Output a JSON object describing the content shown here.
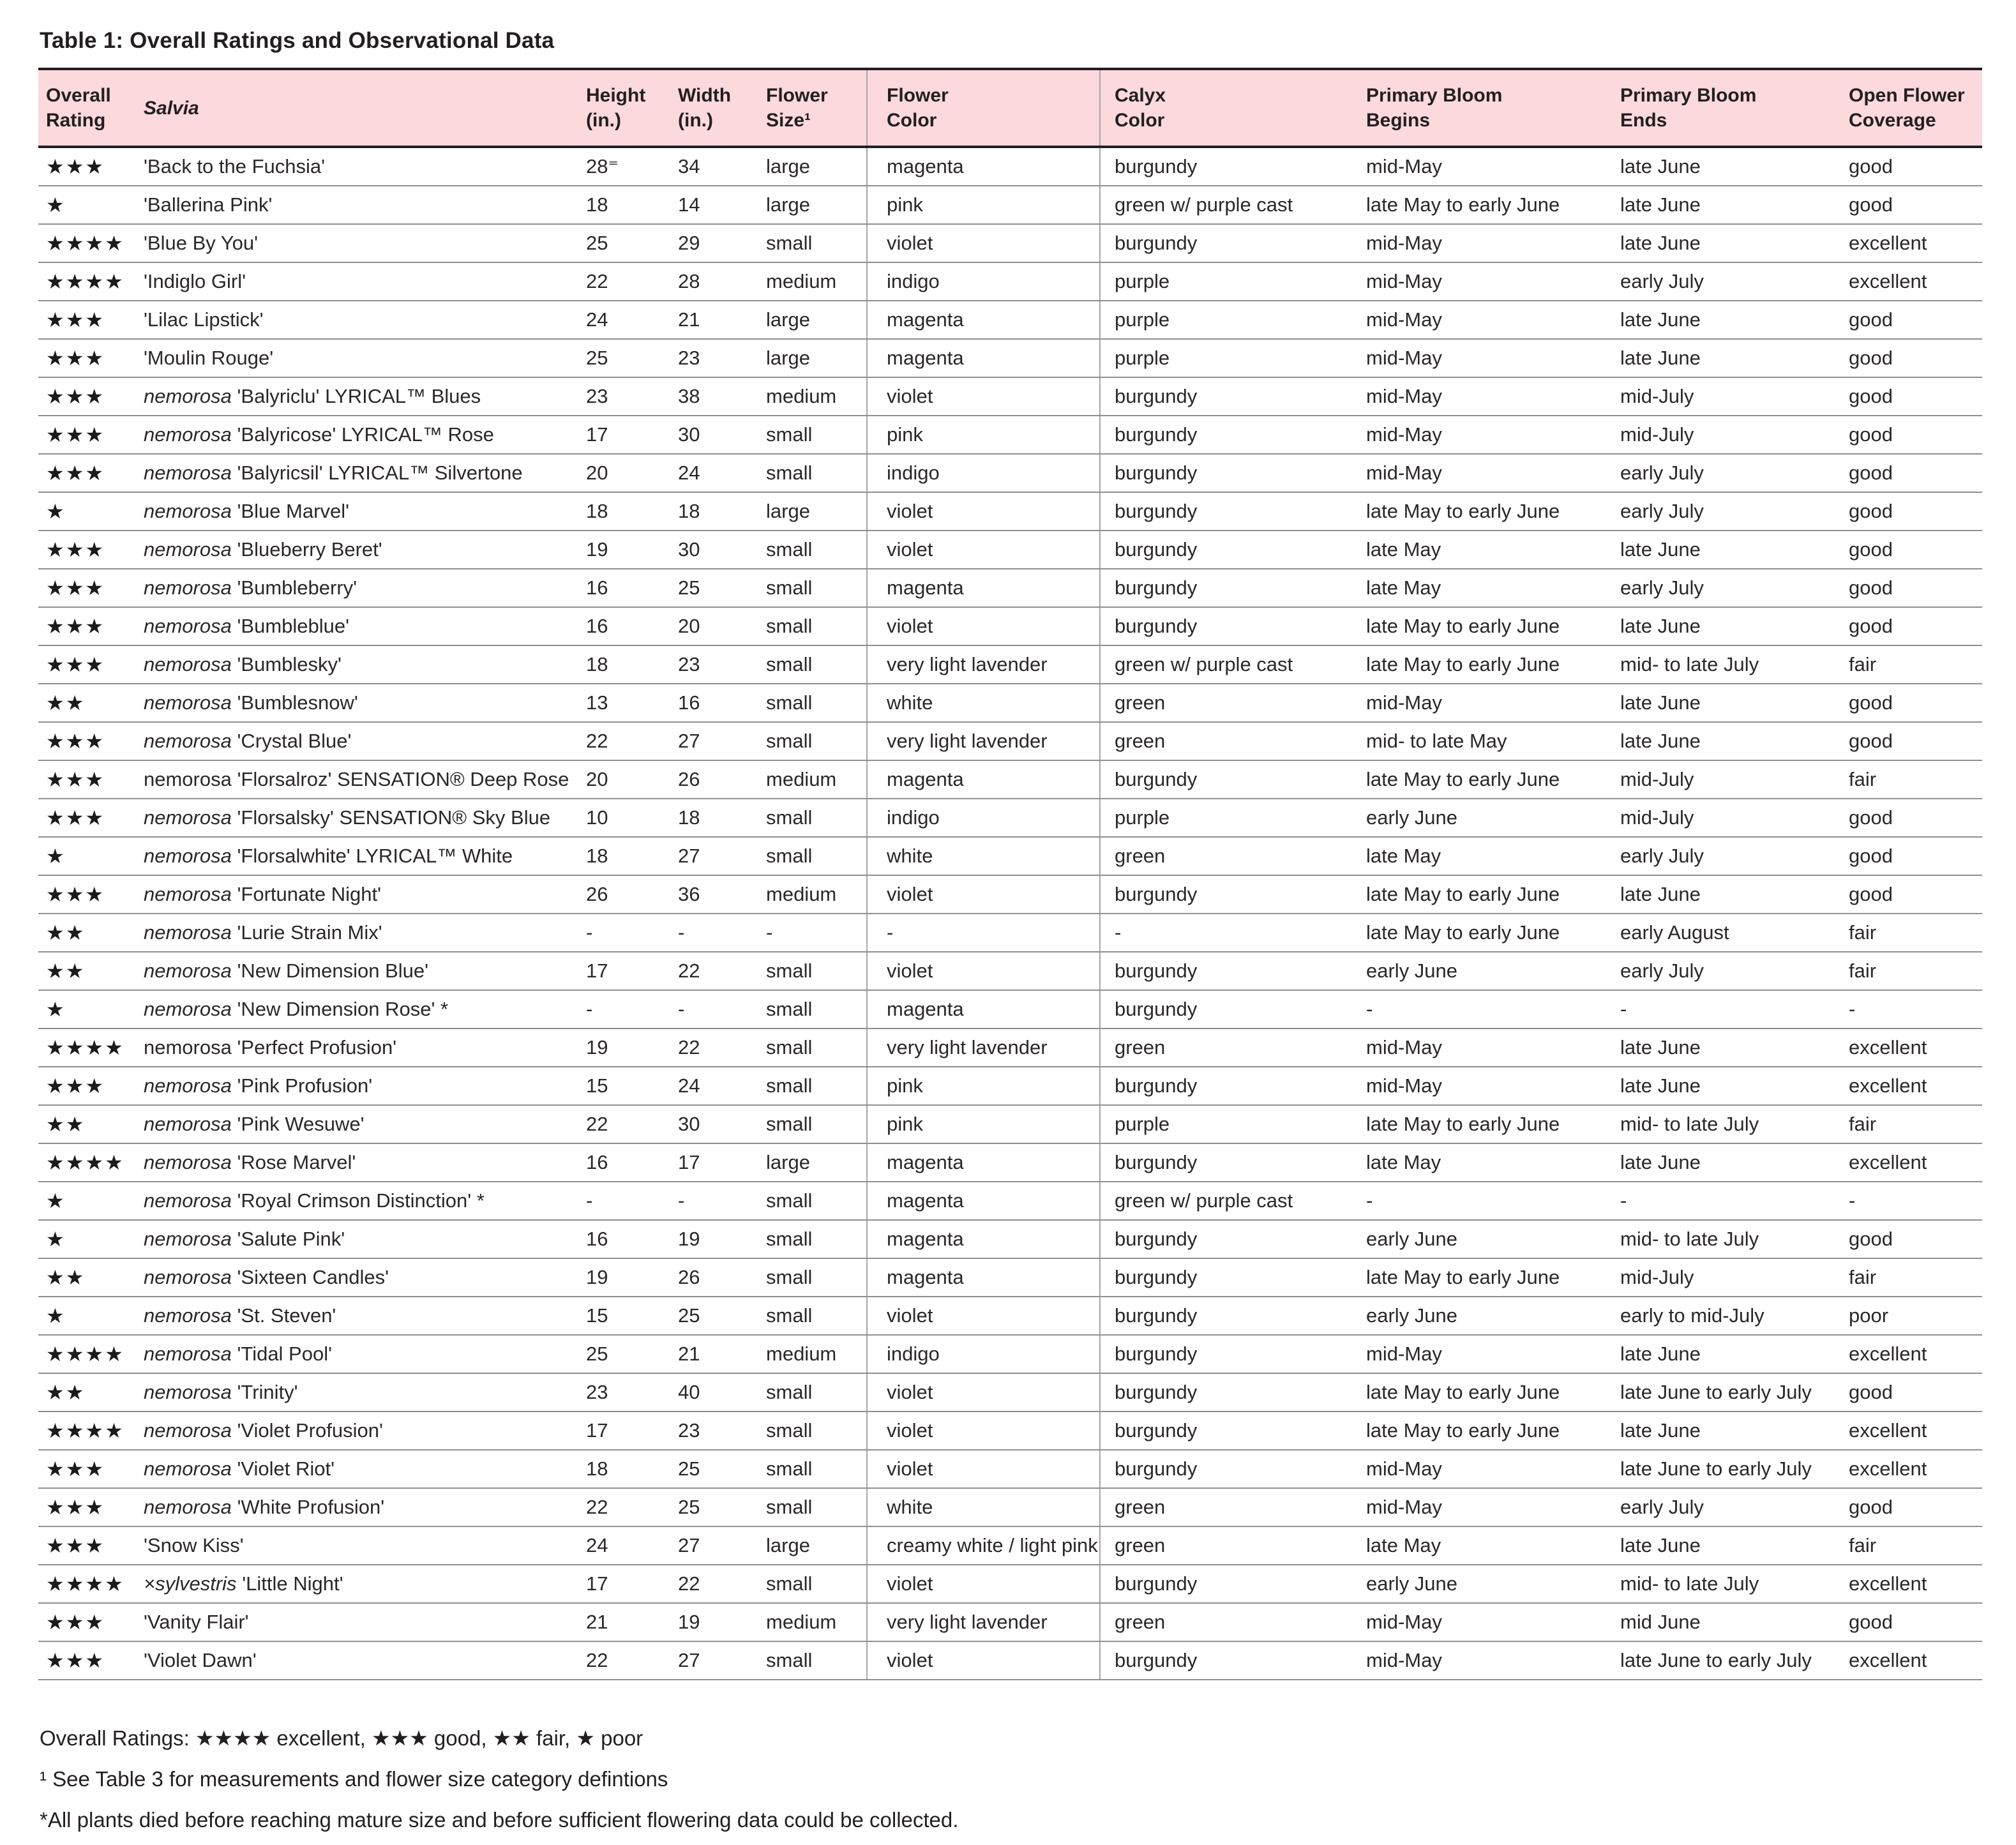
{
  "page": {
    "title": "Table 1: Overall Ratings and Observational Data"
  },
  "colors": {
    "header_bg": "#fbd9dd",
    "header_border": "#221e1f",
    "row_line": "#8f8f8f",
    "column_divider": "#aba4a6",
    "text": "#231f20"
  },
  "table": {
    "columns": [
      "Overall\nRating",
      "Salvia",
      "Height\n(in.)",
      "Width\n(in.)",
      "Flower\nSize¹",
      "Flower\nColor",
      "Calyx\nColor",
      "Primary Bloom\nBegins",
      "Primary Bloom\nEnds",
      "Open Flower\nCoverage"
    ],
    "rows": [
      {
        "stars": 3,
        "species": "",
        "italic": false,
        "cultivar": "'Back to the Fuchsia'",
        "height": "28⁼",
        "width": "34",
        "size": "large",
        "flower": "magenta",
        "calyx": "burgundy",
        "begins": "mid-May",
        "ends": "late June",
        "coverage": "good"
      },
      {
        "stars": 1,
        "species": "",
        "italic": false,
        "cultivar": "'Ballerina Pink'",
        "height": "18",
        "width": "14",
        "size": "large",
        "flower": "pink",
        "calyx": "green w/ purple cast",
        "begins": "late May to early June",
        "ends": "late June",
        "coverage": "good"
      },
      {
        "stars": 4,
        "species": "",
        "italic": false,
        "cultivar": "'Blue By You'",
        "height": "25",
        "width": "29",
        "size": "small",
        "flower": "violet",
        "calyx": "burgundy",
        "begins": "mid-May",
        "ends": "late June",
        "coverage": "excellent"
      },
      {
        "stars": 4,
        "species": "",
        "italic": false,
        "cultivar": "'Indiglo Girl'",
        "height": "22",
        "width": "28",
        "size": "medium",
        "flower": "indigo",
        "calyx": "purple",
        "begins": "mid-May",
        "ends": "early July",
        "coverage": "excellent"
      },
      {
        "stars": 3,
        "species": "",
        "italic": false,
        "cultivar": "'Lilac Lipstick'",
        "height": "24",
        "width": "21",
        "size": "large",
        "flower": "magenta",
        "calyx": "purple",
        "begins": "mid-May",
        "ends": "late June",
        "coverage": "good"
      },
      {
        "stars": 3,
        "species": "",
        "italic": false,
        "cultivar": "'Moulin Rouge'",
        "height": "25",
        "width": "23",
        "size": "large",
        "flower": "magenta",
        "calyx": "purple",
        "begins": "mid-May",
        "ends": "late June",
        "coverage": "good"
      },
      {
        "stars": 3,
        "species": "nemorosa",
        "italic": true,
        "cultivar": "'Balyriclu' LYRICAL™ Blues",
        "height": "23",
        "width": "38",
        "size": "medium",
        "flower": "violet",
        "calyx": "burgundy",
        "begins": "mid-May",
        "ends": "mid-July",
        "coverage": "good"
      },
      {
        "stars": 3,
        "species": "nemorosa",
        "italic": true,
        "cultivar": "'Balyricose' LYRICAL™ Rose",
        "height": "17",
        "width": "30",
        "size": "small",
        "flower": "pink",
        "calyx": "burgundy",
        "begins": "mid-May",
        "ends": "mid-July",
        "coverage": "good"
      },
      {
        "stars": 3,
        "species": "nemorosa",
        "italic": true,
        "cultivar": "'Balyricsil' LYRICAL™ Silvertone",
        "height": "20",
        "width": "24",
        "size": "small",
        "flower": "indigo",
        "calyx": "burgundy",
        "begins": "mid-May",
        "ends": "early July",
        "coverage": "good"
      },
      {
        "stars": 1,
        "species": "nemorosa",
        "italic": true,
        "cultivar": "'Blue Marvel'",
        "height": "18",
        "width": "18",
        "size": "large",
        "flower": "violet",
        "calyx": "burgundy",
        "begins": "late May to early June",
        "ends": "early July",
        "coverage": "good"
      },
      {
        "stars": 3,
        "species": "nemorosa",
        "italic": true,
        "cultivar": "'Blueberry Beret'",
        "height": "19",
        "width": "30",
        "size": "small",
        "flower": "violet",
        "calyx": "burgundy",
        "begins": "late May",
        "ends": "late June",
        "coverage": "good"
      },
      {
        "stars": 3,
        "species": "nemorosa",
        "italic": true,
        "cultivar": "'Bumbleberry'",
        "height": "16",
        "width": "25",
        "size": "small",
        "flower": "magenta",
        "calyx": "burgundy",
        "begins": "late May",
        "ends": "early July",
        "coverage": "good"
      },
      {
        "stars": 3,
        "species": "nemorosa",
        "italic": true,
        "cultivar": "'Bumbleblue'",
        "height": "16",
        "width": "20",
        "size": "small",
        "flower": "violet",
        "calyx": "burgundy",
        "begins": "late May to early June",
        "ends": "late June",
        "coverage": "good"
      },
      {
        "stars": 3,
        "species": "nemorosa",
        "italic": true,
        "cultivar": "'Bumblesky'",
        "height": "18",
        "width": "23",
        "size": "small",
        "flower": "very light lavender",
        "calyx": "green w/ purple cast",
        "begins": "late May to early June",
        "ends": "mid- to late July",
        "coverage": "fair"
      },
      {
        "stars": 2,
        "species": "nemorosa",
        "italic": true,
        "cultivar": "'Bumblesnow'",
        "height": "13",
        "width": "16",
        "size": "small",
        "flower": "white",
        "calyx": "green",
        "begins": "mid-May",
        "ends": "late June",
        "coverage": "good"
      },
      {
        "stars": 3,
        "species": "nemorosa",
        "italic": true,
        "cultivar": "'Crystal Blue'",
        "height": "22",
        "width": "27",
        "size": "small",
        "flower": "very light lavender",
        "calyx": "green",
        "begins": "mid- to late May",
        "ends": "late June",
        "coverage": "good"
      },
      {
        "stars": 3,
        "species": "nemorosa",
        "italic": false,
        "cultivar": "'Florsalroz' SENSATION® Deep Rose",
        "height": "20",
        "width": "26",
        "size": "medium",
        "flower": "magenta",
        "calyx": "burgundy",
        "begins": "late May to early June",
        "ends": "mid-July",
        "coverage": "fair"
      },
      {
        "stars": 3,
        "species": "nemorosa",
        "italic": true,
        "cultivar": "'Florsalsky' SENSATION® Sky Blue",
        "height": "10",
        "width": "18",
        "size": "small",
        "flower": "indigo",
        "calyx": "purple",
        "begins": "early June",
        "ends": "mid-July",
        "coverage": "good"
      },
      {
        "stars": 1,
        "species": "nemorosa",
        "italic": true,
        "cultivar": "'Florsalwhite' LYRICAL™ White",
        "height": "18",
        "width": "27",
        "size": "small",
        "flower": "white",
        "calyx": "green",
        "begins": "late May",
        "ends": "early July",
        "coverage": "good"
      },
      {
        "stars": 3,
        "species": "nemorosa",
        "italic": true,
        "cultivar": "'Fortunate Night'",
        "height": "26",
        "width": "36",
        "size": "medium",
        "flower": "violet",
        "calyx": "burgundy",
        "begins": "late May to early June",
        "ends": "late June",
        "coverage": "good"
      },
      {
        "stars": 2,
        "species": "nemorosa",
        "italic": true,
        "cultivar": "'Lurie Strain Mix'",
        "height": "-",
        "width": "-",
        "size": "-",
        "flower": "-",
        "calyx": "-",
        "begins": "late May to early June",
        "ends": "early August",
        "coverage": "fair"
      },
      {
        "stars": 2,
        "species": "nemorosa",
        "italic": true,
        "cultivar": "'New Dimension Blue'",
        "height": "17",
        "width": "22",
        "size": "small",
        "flower": "violet",
        "calyx": "burgundy",
        "begins": "early June",
        "ends": "early July",
        "coverage": "fair"
      },
      {
        "stars": 1,
        "species": "nemorosa",
        "italic": true,
        "cultivar": "'New Dimension Rose' *",
        "height": "-",
        "width": "-",
        "size": "small",
        "flower": "magenta",
        "calyx": "burgundy",
        "begins": "-",
        "ends": "-",
        "coverage": "-"
      },
      {
        "stars": 4,
        "species": "nemorosa",
        "italic": false,
        "cultivar": "'Perfect Profusion'",
        "height": "19",
        "width": "22",
        "size": "small",
        "flower": "very light lavender",
        "calyx": "green",
        "begins": "mid-May",
        "ends": "late June",
        "coverage": "excellent"
      },
      {
        "stars": 3,
        "species": "nemorosa",
        "italic": true,
        "cultivar": "'Pink Profusion'",
        "height": "15",
        "width": "24",
        "size": "small",
        "flower": "pink",
        "calyx": "burgundy",
        "begins": "mid-May",
        "ends": "late June",
        "coverage": "excellent"
      },
      {
        "stars": 2,
        "species": "nemorosa",
        "italic": true,
        "cultivar": "'Pink Wesuwe'",
        "height": "22",
        "width": "30",
        "size": "small",
        "flower": "pink",
        "calyx": "purple",
        "begins": "late May to early June",
        "ends": "mid- to late July",
        "coverage": "fair"
      },
      {
        "stars": 4,
        "species": "nemorosa",
        "italic": true,
        "cultivar": "'Rose Marvel'",
        "height": "16",
        "width": "17",
        "size": "large",
        "flower": "magenta",
        "calyx": "burgundy",
        "begins": "late May",
        "ends": "late June",
        "coverage": "excellent"
      },
      {
        "stars": 1,
        "species": "nemorosa",
        "italic": true,
        "cultivar": "'Royal Crimson Distinction' *",
        "height": "-",
        "width": "-",
        "size": "small",
        "flower": "magenta",
        "calyx": "green w/ purple cast",
        "begins": "-",
        "ends": "-",
        "coverage": "-"
      },
      {
        "stars": 1,
        "species": "nemorosa",
        "italic": true,
        "cultivar": "'Salute Pink'",
        "height": "16",
        "width": "19",
        "size": "small",
        "flower": "magenta",
        "calyx": "burgundy",
        "begins": "early June",
        "ends": "mid- to late July",
        "coverage": "good"
      },
      {
        "stars": 2,
        "species": "nemorosa",
        "italic": true,
        "cultivar": "'Sixteen Candles'",
        "height": "19",
        "width": "26",
        "size": "small",
        "flower": "magenta",
        "calyx": "burgundy",
        "begins": "late May to early June",
        "ends": "mid-July",
        "coverage": "fair"
      },
      {
        "stars": 1,
        "species": "nemorosa",
        "italic": true,
        "cultivar": "'St. Steven'",
        "height": "15",
        "width": "25",
        "size": "small",
        "flower": "violet",
        "calyx": "burgundy",
        "begins": "early June",
        "ends": "early to mid-July",
        "coverage": "poor"
      },
      {
        "stars": 4,
        "species": "nemorosa",
        "italic": true,
        "cultivar": "'Tidal Pool'",
        "height": "25",
        "width": "21",
        "size": "medium",
        "flower": "indigo",
        "calyx": "burgundy",
        "begins": "mid-May",
        "ends": "late June",
        "coverage": "excellent"
      },
      {
        "stars": 2,
        "species": "nemorosa",
        "italic": true,
        "cultivar": "'Trinity'",
        "height": "23",
        "width": "40",
        "size": "small",
        "flower": "violet",
        "calyx": "burgundy",
        "begins": "late May to early June",
        "ends": "late June to early July",
        "coverage": "good"
      },
      {
        "stars": 4,
        "species": "nemorosa",
        "italic": true,
        "cultivar": "'Violet Profusion'",
        "height": "17",
        "width": "23",
        "size": "small",
        "flower": "violet",
        "calyx": "burgundy",
        "begins": "late May to early June",
        "ends": "late June",
        "coverage": "excellent"
      },
      {
        "stars": 3,
        "species": "nemorosa",
        "italic": true,
        "cultivar": "'Violet Riot'",
        "height": "18",
        "width": "25",
        "size": "small",
        "flower": "violet",
        "calyx": "burgundy",
        "begins": "mid-May",
        "ends": "late June to early July",
        "coverage": "excellent"
      },
      {
        "stars": 3,
        "species": "nemorosa",
        "italic": true,
        "cultivar": "'White Profusion'",
        "height": "22",
        "width": "25",
        "size": "small",
        "flower": "white",
        "calyx": "green",
        "begins": "mid-May",
        "ends": "early July",
        "coverage": "good"
      },
      {
        "stars": 3,
        "species": "",
        "italic": false,
        "cultivar": "'Snow Kiss'",
        "height": "24",
        "width": "27",
        "size": "large",
        "flower": "creamy white / light pink",
        "calyx": "green",
        "begins": "late May",
        "ends": "late June",
        "coverage": "fair"
      },
      {
        "stars": 4,
        "species": "×sylvestris",
        "italic": true,
        "cultivar": "'Little Night'",
        "height": "17",
        "width": "22",
        "size": "small",
        "flower": "violet",
        "calyx": "burgundy",
        "begins": "early June",
        "ends": "mid- to late July",
        "coverage": "excellent"
      },
      {
        "stars": 3,
        "species": "",
        "italic": false,
        "cultivar": "'Vanity Flair'",
        "height": "21",
        "width": "19",
        "size": "medium",
        "flower": "very light lavender",
        "calyx": "green",
        "begins": "mid-May",
        "ends": "mid June",
        "coverage": "good"
      },
      {
        "stars": 3,
        "species": "",
        "italic": false,
        "cultivar": "'Violet Dawn'",
        "height": "22",
        "width": "27",
        "size": "small",
        "flower": "violet",
        "calyx": "burgundy",
        "begins": "mid-May",
        "ends": "late June to early July",
        "coverage": "excellent"
      }
    ]
  },
  "footnotes": {
    "legend": "Overall Ratings: ★★★★ excellent, ★★★ good, ★★ fair, ★ poor",
    "note1": "¹ See Table 3 for measurements and flower size category defintions",
    "note2": "*All plants died before reaching mature size and before sufficient flowering data could be collected."
  }
}
